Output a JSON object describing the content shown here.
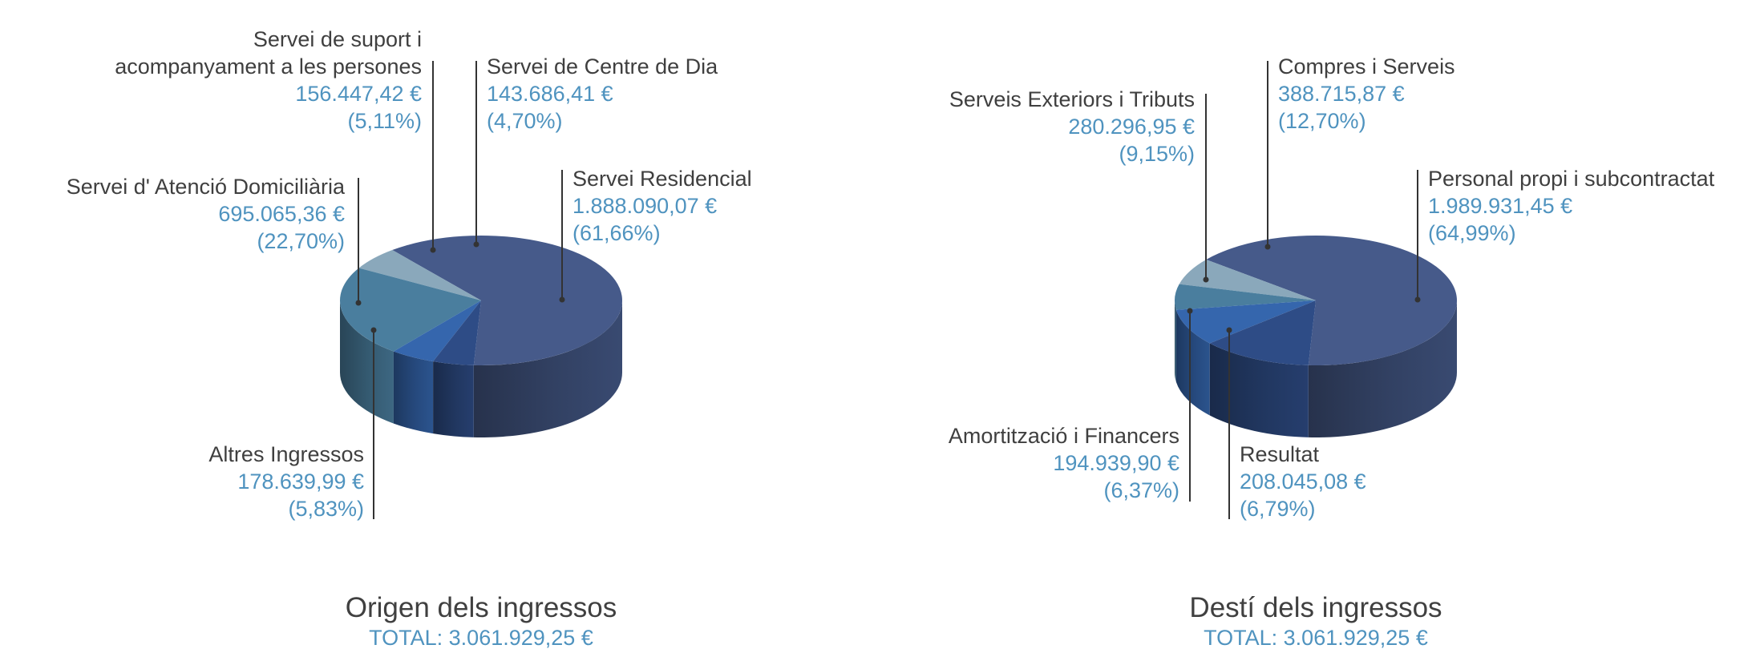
{
  "colors": {
    "title": "#404040",
    "label": "#3f3f3f",
    "value": "#4f93bf",
    "leader": "#333333"
  },
  "chart_data": [
    {
      "type": "pie",
      "style": "3d",
      "title": "Origen dels ingressos",
      "total_text": "TOTAL: 3.061.929,25 €",
      "series": [
        {
          "slices": [
            {
              "label": [
                "Servei Residencial"
              ],
              "value": 1888090.07,
              "value_text": "1.888.090,07 €",
              "percent_text": "(61,66%)",
              "color": "#465a8a"
            },
            {
              "label": [
                "Altres Ingressos"
              ],
              "value": 178639.99,
              "value_text": "178.639,99 €",
              "percent_text": "(5,83%)",
              "color": "#8aa8bb"
            },
            {
              "label": [
                "Servei d' Atenció Domiciliària"
              ],
              "value": 695065.36,
              "value_text": "695.065,36 €",
              "percent_text": "(22,70%)",
              "color": "#4a7e9e"
            },
            {
              "label": [
                "Servei de suport i",
                "acompanyament a les persones"
              ],
              "value": 156447.42,
              "value_text": "156.447,42 €",
              "percent_text": "(5,11%)",
              "color": "#3566ad"
            },
            {
              "label": [
                "Servei de Centre de Dia"
              ],
              "value": 143686.41,
              "value_text": "143.686,41 €",
              "percent_text": "(4,70%)",
              "color": "#2e4c86"
            }
          ]
        }
      ]
    },
    {
      "type": "pie",
      "style": "3d",
      "title": "Destí dels ingressos",
      "total_text": "TOTAL: 3.061.929,25 €",
      "series": [
        {
          "slices": [
            {
              "label": [
                "Personal propi i subcontractat"
              ],
              "value": 1989931.45,
              "value_text": "1.989.931,45 €",
              "percent_text": "(64,99%)",
              "color": "#465a8a"
            },
            {
              "label": [
                "Resultat"
              ],
              "value": 208045.08,
              "value_text": "208.045,08 €",
              "percent_text": "(6,79%)",
              "color": "#8aa8bb"
            },
            {
              "label": [
                "Amortització i Financers"
              ],
              "value": 194939.9,
              "value_text": "194.939,90 €",
              "percent_text": "(6,37%)",
              "color": "#4a7e9e"
            },
            {
              "label": [
                "Serveis Exteriors i Tributs"
              ],
              "value": 280296.95,
              "value_text": "280.296,95 €",
              "percent_text": "(9,15%)",
              "color": "#3566ad"
            },
            {
              "label": [
                "Compres i Serveis"
              ],
              "value": 388715.87,
              "value_text": "388.715,87 €",
              "percent_text": "(12,70%)",
              "color": "#2e4c86"
            }
          ]
        }
      ]
    }
  ]
}
